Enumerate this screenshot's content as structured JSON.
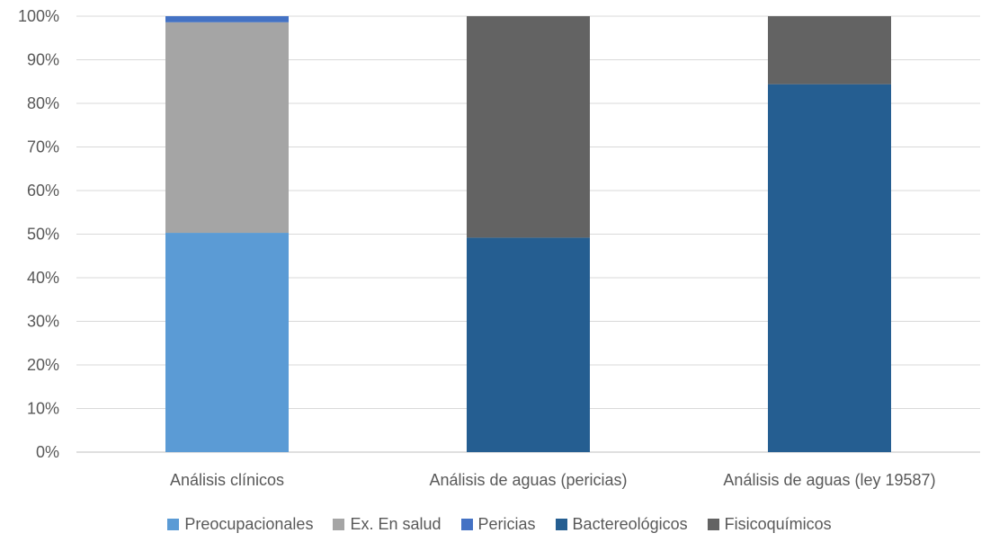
{
  "chart_data": {
    "type": "bar",
    "stacked": true,
    "percent": true,
    "categories": [
      "Análisis clínicos",
      "Análisis de aguas (pericias)",
      "Análisis de aguas (ley 19587)"
    ],
    "series": [
      {
        "name": "Preocupacionales",
        "color": "#5B9BD5",
        "values": [
          50.3,
          0,
          0
        ]
      },
      {
        "name": "Ex. En salud",
        "color": "#A5A5A5",
        "values": [
          48.3,
          0,
          0
        ]
      },
      {
        "name": "Pericias",
        "color": "#4472C4",
        "values": [
          1.4,
          0,
          0
        ]
      },
      {
        "name": "Bactereológicos",
        "color": "#255E91",
        "values": [
          0,
          49.2,
          84.4
        ]
      },
      {
        "name": "Fisicoquímicos",
        "color": "#636363",
        "values": [
          0,
          50.8,
          15.6
        ]
      }
    ],
    "y_ticks": [
      "0%",
      "10%",
      "20%",
      "30%",
      "40%",
      "50%",
      "60%",
      "70%",
      "80%",
      "90%",
      "100%"
    ],
    "ylim": [
      0,
      100
    ],
    "grid": true,
    "legend_position": "bottom"
  }
}
